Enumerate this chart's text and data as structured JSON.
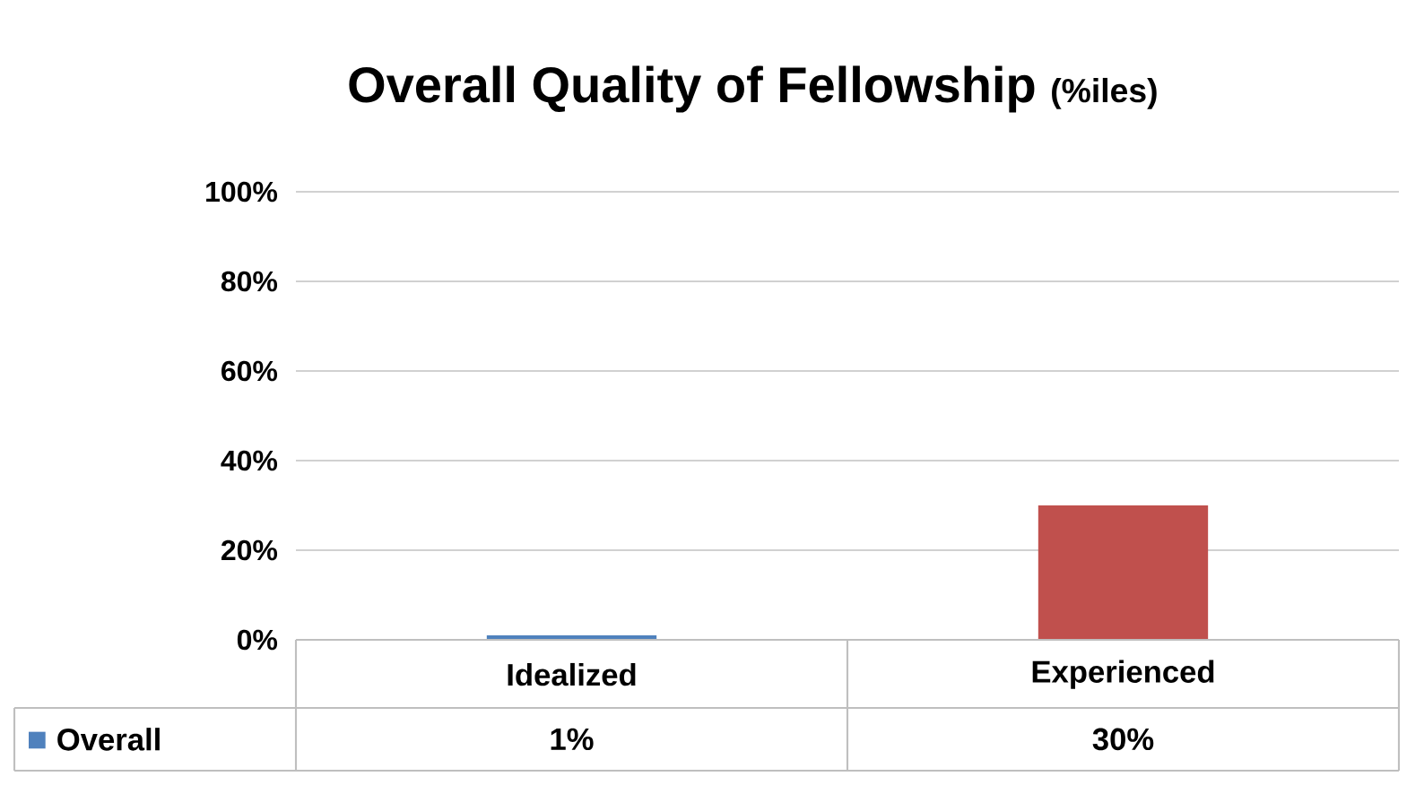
{
  "chart_data": {
    "type": "bar",
    "title": "Overall Quality of Fellowship",
    "subtitle": "(%iles)",
    "categories": [
      "Idealized",
      "Experienced"
    ],
    "series": [
      {
        "name": "Overall",
        "color": "#4f81bd",
        "colors": [
          "#4f81bd",
          "#c0504d"
        ],
        "values": [
          1,
          30
        ],
        "value_labels": [
          "1%",
          "30%"
        ]
      }
    ],
    "ylim": [
      0,
      100
    ],
    "yticks": [
      {
        "value": 0,
        "label": "0%"
      },
      {
        "value": 20,
        "label": "20%"
      },
      {
        "value": 40,
        "label": "40%"
      },
      {
        "value": 60,
        "label": "60%"
      },
      {
        "value": 80,
        "label": "80%"
      },
      {
        "value": 100,
        "label": "100%"
      }
    ],
    "grid": "y",
    "legend": "bottom"
  }
}
